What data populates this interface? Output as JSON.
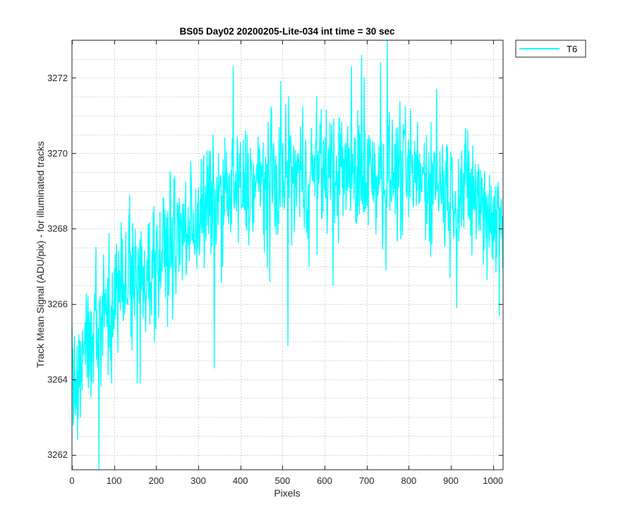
{
  "chart_data": {
    "type": "line",
    "title": "BS05 Day02 20200205-Lite-034 int time = 30 sec",
    "xlabel": "Pixels",
    "ylabel": "Track Mean Signal (ADU/pix) - for illuminated tracks",
    "xlim": [
      0,
      1024
    ],
    "ylim": [
      3261.6,
      3273.0
    ],
    "xticks": [
      0,
      100,
      200,
      300,
      400,
      500,
      600,
      700,
      800,
      900,
      1000
    ],
    "yticks": [
      3262,
      3264,
      3266,
      3268,
      3270,
      3272
    ],
    "xtick_labels": [
      "0",
      "100",
      "200",
      "300",
      "400",
      "500",
      "600",
      "700",
      "800",
      "900",
      "1000"
    ],
    "ytick_labels": [
      "3262",
      "3264",
      "3266",
      "3268",
      "3270",
      "3272"
    ],
    "grid": true,
    "minor_grid": true,
    "legend_position": "outside-top-right",
    "series": [
      {
        "name": "T6",
        "color": "#00ffff",
        "n_points": 1024,
        "trend_x": [
          0,
          25,
          50,
          75,
          100,
          125,
          150,
          175,
          200,
          225,
          250,
          275,
          300,
          325,
          350,
          375,
          400,
          450,
          500,
          550,
          600,
          650,
          700,
          750,
          800,
          850,
          900,
          950,
          1000,
          1023
        ],
        "trend_y": [
          3263.6,
          3264.6,
          3265.3,
          3265.8,
          3266.2,
          3266.5,
          3266.7,
          3266.9,
          3267.1,
          3267.4,
          3267.7,
          3268.0,
          3268.3,
          3268.6,
          3268.8,
          3268.9,
          3269.0,
          3269.2,
          3269.3,
          3269.4,
          3269.5,
          3269.5,
          3269.5,
          3269.5,
          3269.4,
          3269.3,
          3269.0,
          3268.9,
          3268.3,
          3268.1
        ],
        "noise_amplitude": 0.8,
        "observed_min": 3261.6,
        "observed_max": 3273.0,
        "spikes": [
          {
            "x": 64,
            "y": 3261.6
          },
          {
            "x": 13,
            "y": 3262.4
          },
          {
            "x": 20,
            "y": 3263.0
          },
          {
            "x": 155,
            "y": 3263.9
          },
          {
            "x": 162,
            "y": 3263.9
          },
          {
            "x": 338,
            "y": 3264.3
          },
          {
            "x": 513,
            "y": 3264.9
          },
          {
            "x": 57,
            "y": 3267.5
          },
          {
            "x": 137,
            "y": 3268.9
          },
          {
            "x": 233,
            "y": 3269.5
          },
          {
            "x": 383,
            "y": 3272.3
          },
          {
            "x": 496,
            "y": 3271.9
          },
          {
            "x": 515,
            "y": 3271.5
          },
          {
            "x": 581,
            "y": 3271.5
          },
          {
            "x": 664,
            "y": 3272.3
          },
          {
            "x": 688,
            "y": 3272.6
          },
          {
            "x": 694,
            "y": 3272.0
          },
          {
            "x": 733,
            "y": 3272.4
          },
          {
            "x": 749,
            "y": 3273.0
          },
          {
            "x": 746,
            "y": 3266.9
          },
          {
            "x": 914,
            "y": 3265.9
          },
          {
            "x": 1015,
            "y": 3265.7
          },
          {
            "x": 898,
            "y": 3266.7
          },
          {
            "x": 866,
            "y": 3271.7
          },
          {
            "x": 620,
            "y": 3266.5
          },
          {
            "x": 563,
            "y": 3267.0
          },
          {
            "x": 470,
            "y": 3266.6
          }
        ]
      }
    ]
  }
}
